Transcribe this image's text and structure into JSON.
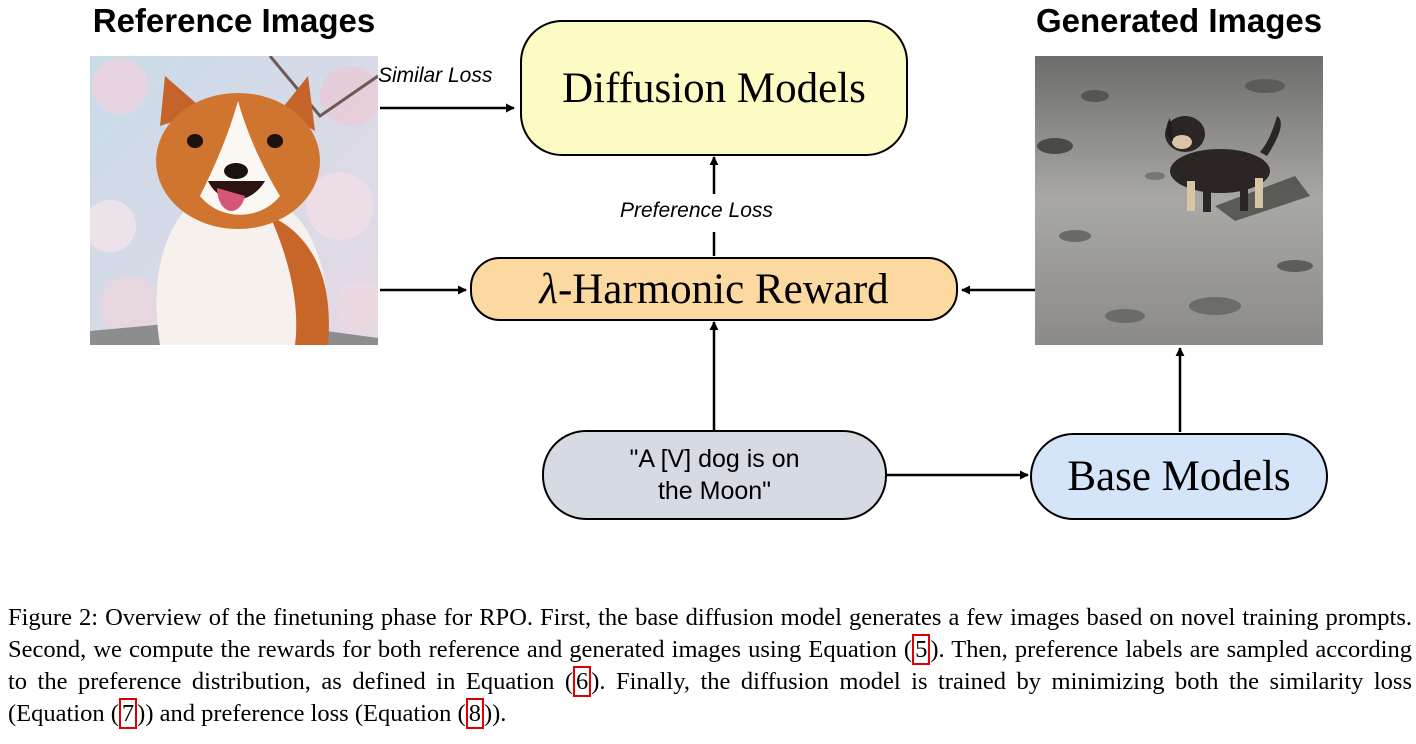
{
  "figure": {
    "reference_title": "Reference Images",
    "generated_title": "Generated Images",
    "diffusion_models": "Diffusion Models",
    "harmonic_reward": "-Harmonic Reward",
    "lambda_symbol": "λ",
    "base_models": "Base Models",
    "prompt_line1": "\"A [V] dog is on",
    "prompt_line2": "the Moon\"",
    "similar_loss": "Similar Loss",
    "preference_loss": "Preference Loss",
    "colors": {
      "diffusion_fill": "#fdfbc4",
      "reward_fill": "#fcd9a1",
      "prompt_fill": "#d6dae3",
      "base_fill": "#d4e4f9"
    }
  },
  "caption": {
    "text1": "Figure 2: Overview of the finetuning phase for RPO. First, the base diffusion model generates a few images based on novel training prompts. Second, we compute the rewards for both reference and generated images using Equation (",
    "ref1": "5",
    "text2": "). Then, preference labels are sampled according to the preference distribution, as defined in Equation (",
    "ref2": "6",
    "text3": "). Finally, the diffusion model is trained by minimizing both the similarity loss (Equation (",
    "ref3": "7",
    "text4": ")) and preference loss (Equation (",
    "ref4": "8",
    "text5": "))."
  }
}
